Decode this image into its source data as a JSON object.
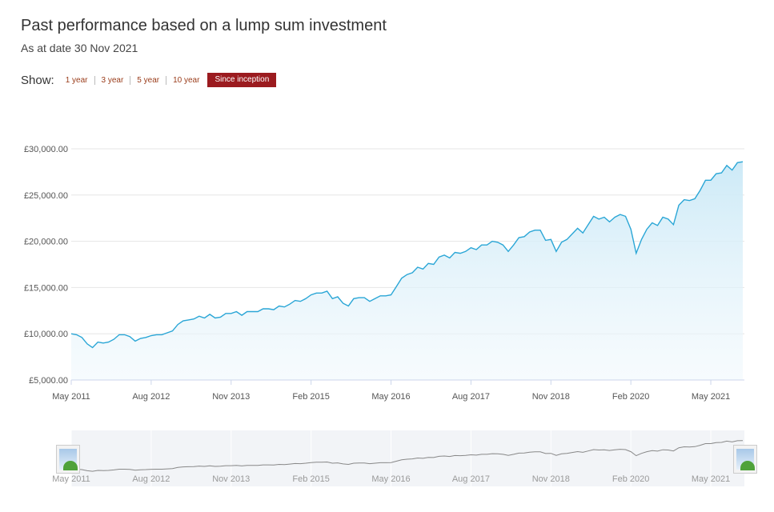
{
  "header": {
    "title": "Past performance based on a lump sum investment",
    "as_at": "As at date 30 Nov 2021"
  },
  "controls": {
    "show_label": "Show:",
    "periods": [
      "1 year",
      "3 year",
      "5 year",
      "10 year",
      "Since inception"
    ],
    "active_period": "Since inception"
  },
  "colors": {
    "accent": "#9b1b1f",
    "line": "#2aa6d6",
    "area_top": "#cdeaf7",
    "navigator_line": "#888888"
  },
  "chart_data": {
    "type": "area",
    "title": "",
    "xlabel": "",
    "ylabel": "",
    "ylim": [
      5000,
      30000
    ],
    "y_ticks": [
      5000,
      10000,
      15000,
      20000,
      25000,
      30000
    ],
    "y_tick_labels": [
      "£5,000.00",
      "£10,000.00",
      "£15,000.00",
      "£20,000.00",
      "£25,000.00",
      "£30,000.00"
    ],
    "x_tick_labels": [
      "May 2011",
      "Aug 2012",
      "Nov 2013",
      "Feb 2015",
      "May 2016",
      "Aug 2017",
      "Nov 2018",
      "Feb 2020",
      "May 2021"
    ],
    "x_start": "2011-05",
    "grid": true,
    "legend": "none",
    "series": [
      {
        "values": [
          10000,
          9900,
          9600,
          8900,
          8500,
          9100,
          9000,
          9100,
          9400,
          9900,
          9900,
          9700,
          9200,
          9500,
          9600,
          9800,
          9900,
          9900,
          10100,
          10300,
          11000,
          11400,
          11500,
          11600,
          11900,
          11700,
          12100,
          11700,
          11800,
          12200,
          12200,
          12400,
          12000,
          12400,
          12400,
          12400,
          12700,
          12700,
          12600,
          13000,
          12900,
          13200,
          13600,
          13500,
          13800,
          14200,
          14400,
          14400,
          14600,
          13800,
          14000,
          13300,
          13000,
          13800,
          13900,
          13900,
          13500,
          13800,
          14100,
          14100,
          14200,
          15100,
          16000,
          16400,
          16600,
          17200,
          17000,
          17600,
          17500,
          18300,
          18500,
          18200,
          18800,
          18700,
          18900,
          19300,
          19100,
          19600,
          19600,
          20000,
          19900,
          19600,
          18900,
          19600,
          20400,
          20500,
          21000,
          21200,
          21200,
          20100,
          20200,
          18900,
          19900,
          20200,
          20800,
          21400,
          20900,
          21800,
          22700,
          22400,
          22600,
          22100,
          22600,
          22900,
          22700,
          21300,
          18700,
          20200,
          21300,
          22000,
          21700,
          22600,
          22400,
          21800,
          23900,
          24500,
          24400,
          24600,
          25500,
          26600,
          26600,
          27300,
          27400,
          28200,
          27700,
          28500,
          28600
        ]
      }
    ]
  }
}
